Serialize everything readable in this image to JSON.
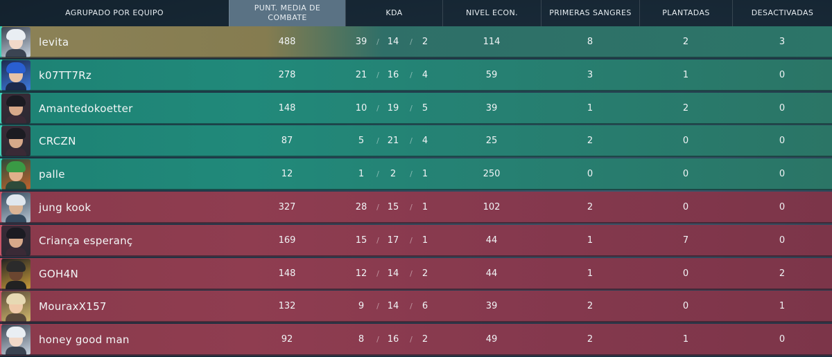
{
  "header": {
    "group_label": "AGRUPADO POR EQUIPO",
    "acs_label": "PUNT. MEDIA DE COMBATE",
    "kda_label": "KDA",
    "econ_label": "NIVEL ECON.",
    "first_bloods_label": "PRIMERAS SANGRES",
    "plants_label": "PLANTADAS",
    "defuses_label": "DESACTIVADAS"
  },
  "kda_separator": "/",
  "colors": {
    "team_a": "#21897a",
    "team_b": "#8f3d50",
    "top_player": "#8c8257",
    "header_active": "#5a7284"
  },
  "players": [
    {
      "name": "levita",
      "acs": "488",
      "k": "39",
      "d": "14",
      "a": "2",
      "econ": "114",
      "fb": "8",
      "plants": "2",
      "defuses": "3",
      "team": "top",
      "avatar": "agent-portrait-light-hair"
    },
    {
      "name": "k07TT7Rz",
      "acs": "278",
      "k": "21",
      "d": "16",
      "a": "4",
      "econ": "59",
      "fb": "3",
      "plants": "1",
      "defuses": "0",
      "team": "a",
      "avatar": "agent-portrait-blue-hair"
    },
    {
      "name": "Amantedokoetter",
      "acs": "148",
      "k": "10",
      "d": "19",
      "a": "5",
      "econ": "39",
      "fb": "1",
      "plants": "2",
      "defuses": "0",
      "team": "a",
      "avatar": "agent-portrait-dark-hair"
    },
    {
      "name": "CRCZN",
      "acs": "87",
      "k": "5",
      "d": "21",
      "a": "4",
      "econ": "25",
      "fb": "2",
      "plants": "0",
      "defuses": "0",
      "team": "a",
      "avatar": "agent-portrait-dark-hair"
    },
    {
      "name": "palle",
      "acs": "12",
      "k": "1",
      "d": "2",
      "a": "1",
      "econ": "250",
      "fb": "0",
      "plants": "0",
      "defuses": "0",
      "team": "a",
      "avatar": "agent-portrait-headband"
    },
    {
      "name": "jung kook",
      "acs": "327",
      "k": "28",
      "d": "15",
      "a": "1",
      "econ": "102",
      "fb": "2",
      "plants": "0",
      "defuses": "0",
      "team": "b",
      "avatar": "agent-portrait-white-hair"
    },
    {
      "name": "Criança esperanç",
      "acs": "169",
      "k": "15",
      "d": "17",
      "a": "1",
      "econ": "44",
      "fb": "1",
      "plants": "7",
      "defuses": "0",
      "team": "b",
      "avatar": "agent-portrait-dark-hair"
    },
    {
      "name": "GOH4N",
      "acs": "148",
      "k": "12",
      "d": "14",
      "a": "2",
      "econ": "44",
      "fb": "1",
      "plants": "0",
      "defuses": "2",
      "team": "b",
      "avatar": "agent-portrait-masked"
    },
    {
      "name": "MouraxX157",
      "acs": "132",
      "k": "9",
      "d": "14",
      "a": "6",
      "econ": "39",
      "fb": "2",
      "plants": "0",
      "defuses": "1",
      "team": "b",
      "avatar": "agent-portrait-blond"
    },
    {
      "name": "honey good man",
      "acs": "92",
      "k": "8",
      "d": "16",
      "a": "2",
      "econ": "49",
      "fb": "2",
      "plants": "1",
      "defuses": "0",
      "team": "b",
      "avatar": "agent-portrait-light-hair"
    }
  ]
}
